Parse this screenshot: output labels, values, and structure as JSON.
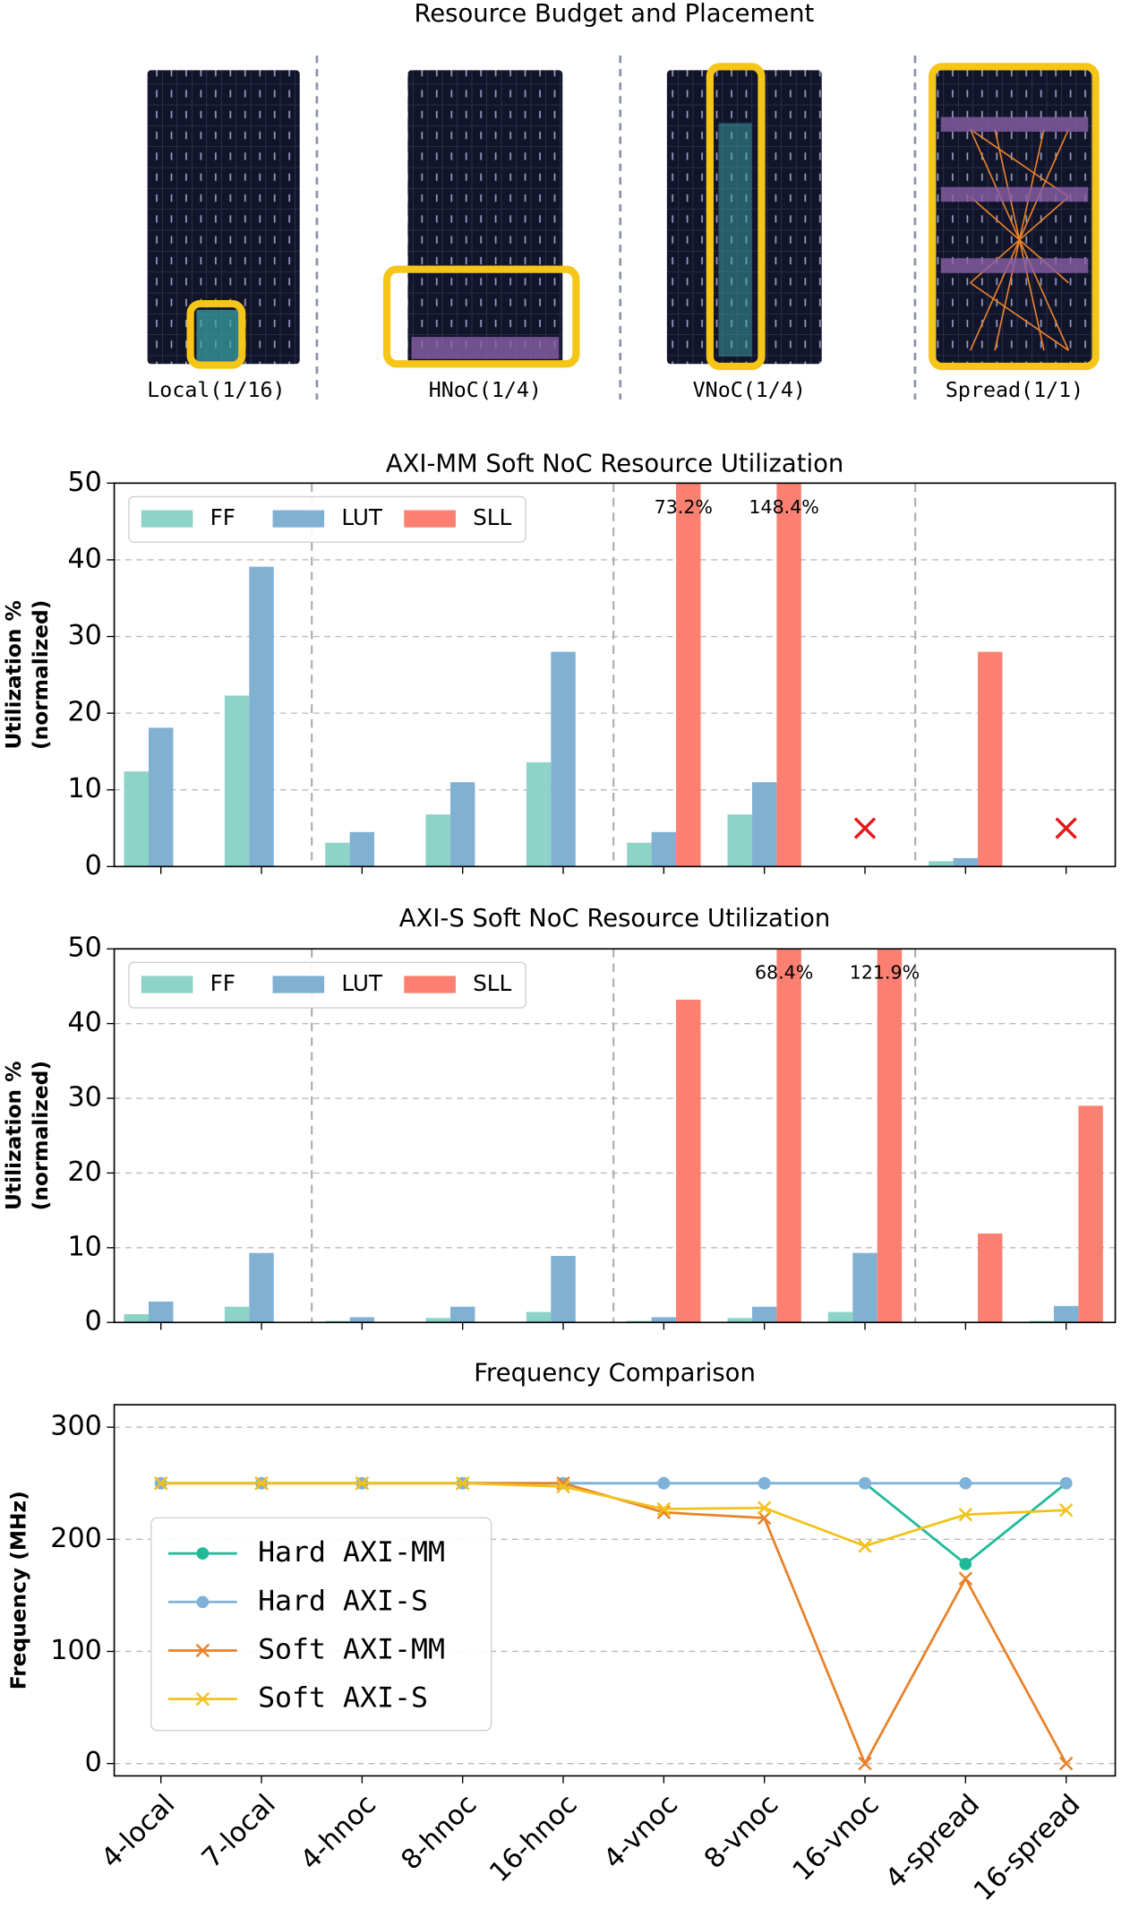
{
  "chart_data": [
    {
      "type": "placement",
      "title": "Resource Budget and Placement",
      "labels": [
        "Local(1/16)",
        "HNoC(1/4)",
        "VNoC(1/4)",
        "Spread(1/1)"
      ]
    },
    {
      "type": "bar",
      "title": "AXI-MM Soft NoC Resource Utilization",
      "ylabel": [
        "Utilization %",
        "(normalized)"
      ],
      "ylim": [
        0,
        50
      ],
      "yticks": [
        0,
        10,
        20,
        30,
        40,
        50
      ],
      "grid": true,
      "legend": "upper left",
      "series": [
        {
          "name": "FF",
          "color": "#8dd3c7",
          "values": [
            12.4,
            22.3,
            3.1,
            6.8,
            13.6,
            3.1,
            6.8,
            null,
            0.7,
            null
          ]
        },
        {
          "name": "LUT",
          "color": "#80b1d3",
          "values": [
            18.1,
            39.1,
            4.5,
            11.0,
            28.0,
            4.5,
            11.0,
            null,
            1.1,
            null
          ]
        },
        {
          "name": "SLL",
          "color": "#fb8072",
          "values": [
            null,
            null,
            null,
            null,
            null,
            73.2,
            148.4,
            null,
            28.0,
            null
          ],
          "value_labels": [
            null,
            null,
            null,
            null,
            null,
            "73.2%",
            "148.4%",
            null,
            null,
            null
          ]
        }
      ],
      "markers": [
        {
          "index": 7,
          "y": 5
        },
        {
          "index": 9,
          "y": 5
        }
      ],
      "marker_color": "#e41a1c"
    },
    {
      "type": "bar",
      "title": "AXI-S Soft NoC Resource Utilization",
      "ylabel": [
        "Utilization %",
        "(normalized)"
      ],
      "ylim": [
        0,
        50
      ],
      "yticks": [
        0,
        10,
        20,
        30,
        40,
        50
      ],
      "grid": true,
      "legend": "upper left",
      "series": [
        {
          "name": "FF",
          "color": "#8dd3c7",
          "values": [
            1.1,
            2.1,
            0.2,
            0.6,
            1.4,
            0.2,
            0.6,
            1.4,
            0.1,
            0.2
          ]
        },
        {
          "name": "LUT",
          "color": "#80b1d3",
          "values": [
            2.8,
            9.3,
            0.7,
            2.1,
            8.9,
            0.7,
            2.1,
            9.3,
            0.1,
            2.2
          ]
        },
        {
          "name": "SLL",
          "color": "#fb8072",
          "values": [
            null,
            null,
            null,
            null,
            null,
            43.2,
            68.4,
            121.9,
            11.9,
            29.0
          ],
          "value_labels": [
            null,
            null,
            null,
            null,
            null,
            null,
            "68.4%",
            "121.9%",
            null,
            null
          ]
        }
      ]
    },
    {
      "type": "line",
      "title": "Frequency Comparison",
      "ylabel": "Frequency (MHz)",
      "categories": [
        "4-local",
        "7-local",
        "4-hnoc",
        "8-hnoc",
        "16-hnoc",
        "4-vnoc",
        "8-vnoc",
        "16-vnoc",
        "4-spread",
        "16-spread"
      ],
      "ylim": [
        -11,
        320
      ],
      "yticks": [
        0,
        100,
        200,
        300
      ],
      "grid": true,
      "legend": "center left",
      "series": [
        {
          "name": "Hard AXI-MM",
          "color": "#1fba98",
          "marker": "o",
          "values": [
            250,
            250,
            250,
            250,
            250,
            250,
            250,
            250,
            178,
            250
          ]
        },
        {
          "name": "Hard AXI-S",
          "color": "#7fb2d9",
          "marker": "o",
          "values": [
            250,
            250,
            250,
            250,
            250,
            250,
            250,
            250,
            250,
            250
          ]
        },
        {
          "name": "Soft AXI-MM",
          "color": "#e8822a",
          "marker": "x",
          "values": [
            250,
            250,
            250,
            250,
            250,
            224,
            219,
            0,
            165,
            0
          ]
        },
        {
          "name": "Soft AXI-S",
          "color": "#f2c21b",
          "marker": "x",
          "values": [
            250,
            250,
            250,
            250,
            247,
            227,
            228,
            194,
            222,
            226
          ]
        }
      ]
    }
  ]
}
